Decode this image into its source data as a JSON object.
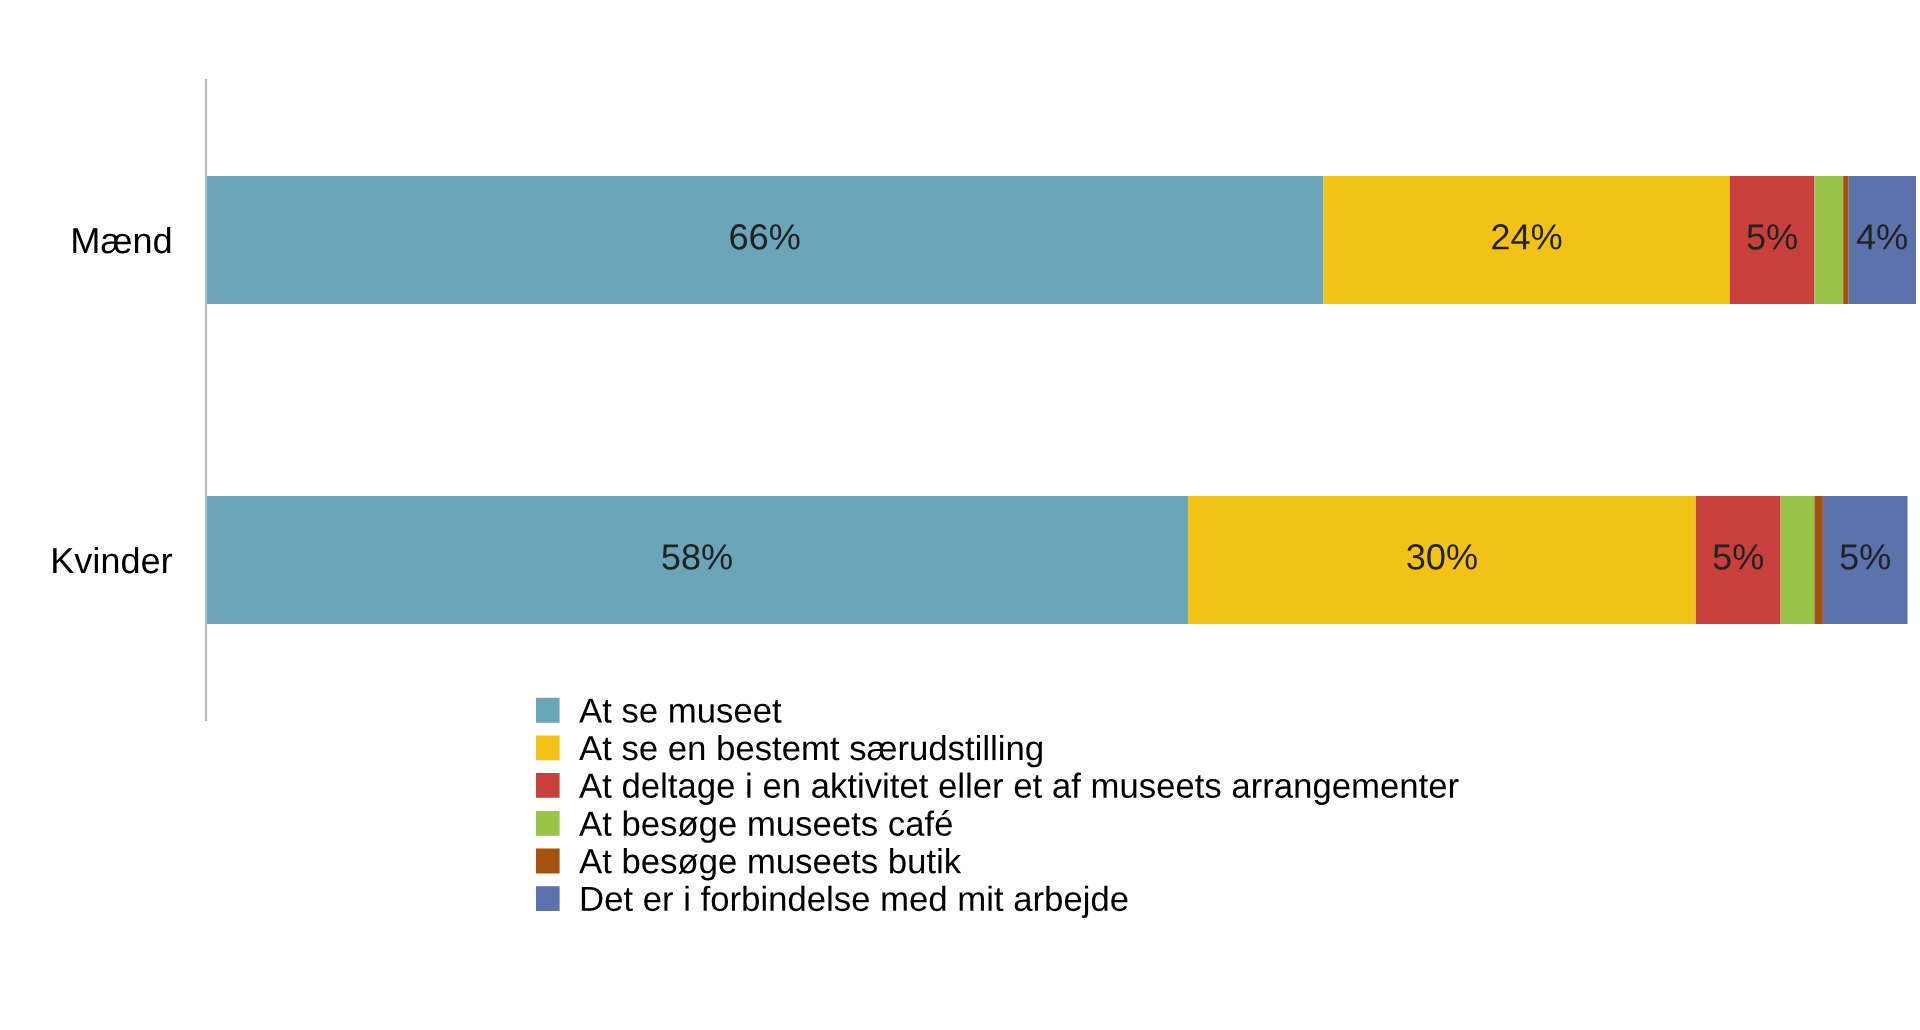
{
  "chart_data": {
    "type": "bar",
    "orientation": "horizontal",
    "stacked": true,
    "categories": [
      "Mænd",
      "Kvinder"
    ],
    "legend": "bottom",
    "grid": false,
    "series": [
      {
        "name": "At se museet",
        "color": "#6aa6b8",
        "values": [
          66,
          58
        ],
        "value_labels": [
          "66%",
          "58%"
        ]
      },
      {
        "name": "At se en bestemt særudstilling",
        "color": "#f2c316",
        "values": [
          24,
          30
        ],
        "value_labels": [
          "24%",
          "30%"
        ]
      },
      {
        "name": "At deltage i en aktivitet eller et af museets arrangementer",
        "color": "#c8403c",
        "values": [
          5,
          5
        ],
        "value_labels": [
          "5%",
          "5%"
        ]
      },
      {
        "name": "At besøge museets café",
        "color": "#98c447",
        "values": [
          1.7,
          2
        ],
        "value_labels": [
          null,
          null
        ]
      },
      {
        "name": "At besøge museets butik",
        "color": "#a5520f",
        "values": [
          0.3,
          0.5
        ],
        "value_labels": [
          null,
          null
        ]
      },
      {
        "name": "Det er i forbindelse med mit arbejde",
        "color": "#5c72ad",
        "values": [
          4,
          5
        ],
        "value_labels": [
          "4%",
          "5%"
        ]
      }
    ]
  }
}
